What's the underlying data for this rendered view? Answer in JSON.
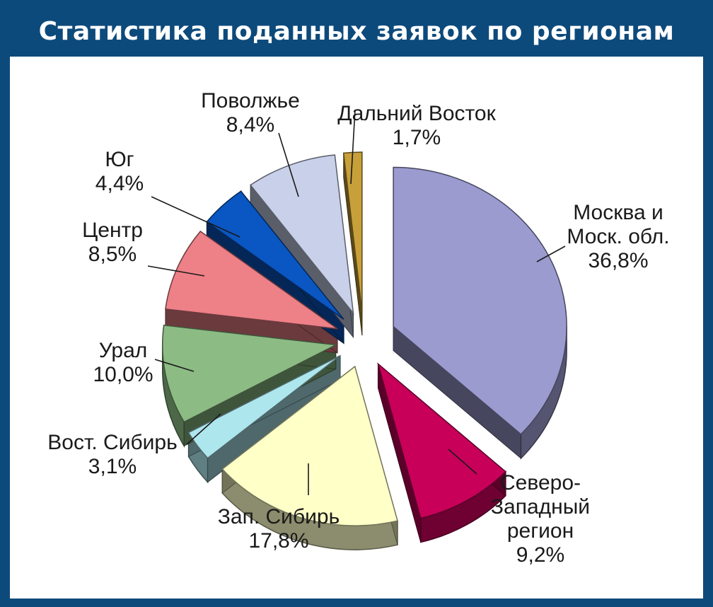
{
  "chart_data": {
    "type": "pie",
    "title": "Статистика поданных заявок по регионам",
    "slices": [
      {
        "name": "Москва и Моск. обл.",
        "lines": [
          "Москва и",
          "Моск. обл."
        ],
        "value": 36.8,
        "label": "36,8%",
        "color": "#9b9bd0"
      },
      {
        "name": "Северо-Западный регион",
        "lines": [
          "Северо-",
          "Западный",
          "регион"
        ],
        "value": 9.2,
        "label": "9,2%",
        "color": "#c8005a"
      },
      {
        "name": "Зап. Сибирь",
        "lines": [
          "Зап. Сибирь"
        ],
        "value": 17.8,
        "label": "17,8%",
        "color": "#ffffc8"
      },
      {
        "name": "Вост. Сибирь",
        "lines": [
          "Вост. Сибирь"
        ],
        "value": 3.1,
        "label": "3,1%",
        "color": "#aee6ee"
      },
      {
        "name": "Урал",
        "lines": [
          "Урал"
        ],
        "value": 10.0,
        "label": "10,0%",
        "color": "#8cbc84"
      },
      {
        "name": "Центр",
        "lines": [
          "Центр"
        ],
        "value": 8.5,
        "label": "8,5%",
        "color": "#ee8088"
      },
      {
        "name": "Юг",
        "lines": [
          "Юг"
        ],
        "value": 4.4,
        "label": "4,4%",
        "color": "#0a56c2"
      },
      {
        "name": "Поволжье",
        "lines": [
          "Поволжье"
        ],
        "value": 8.4,
        "label": "8,4%",
        "color": "#c8d0ea"
      },
      {
        "name": "Дальний Восток",
        "lines": [
          "Дальний Восток"
        ],
        "value": 1.7,
        "label": "1,7%",
        "color": "#c8a03a"
      }
    ]
  }
}
